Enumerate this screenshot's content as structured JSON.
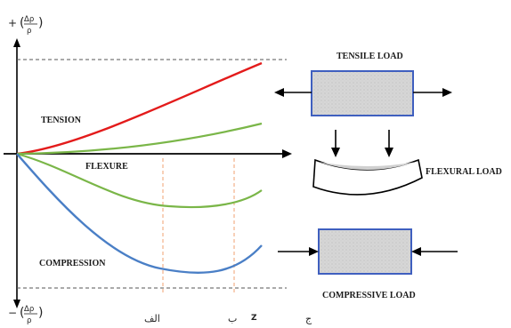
{
  "y_axis": {
    "top_sign": "+",
    "bottom_sign": "−",
    "frac_num": "Δρ",
    "frac_den": "ρ"
  },
  "curves": {
    "tension_label": "TENSION",
    "flexure_label": "FLEXURE",
    "compression_label": "COMPRESSION",
    "tension_color": "#e31b1b",
    "flexure_color": "#7ab648",
    "compression_color": "#4a7fc6"
  },
  "loads": {
    "tensile": "TENSILE LOAD",
    "flexural": "FLEXURAL LOAD",
    "compressive": "COMPRESSIVE LOAD"
  },
  "footer_text": {
    "left": "الف",
    "middle_a": "ب",
    "middle_b": "ج",
    "mark": "Z"
  },
  "colors": {
    "specimen_border": "#3f5fbf",
    "specimen_fill": "#d9d9d9",
    "guide_line": "#f0a070"
  }
}
